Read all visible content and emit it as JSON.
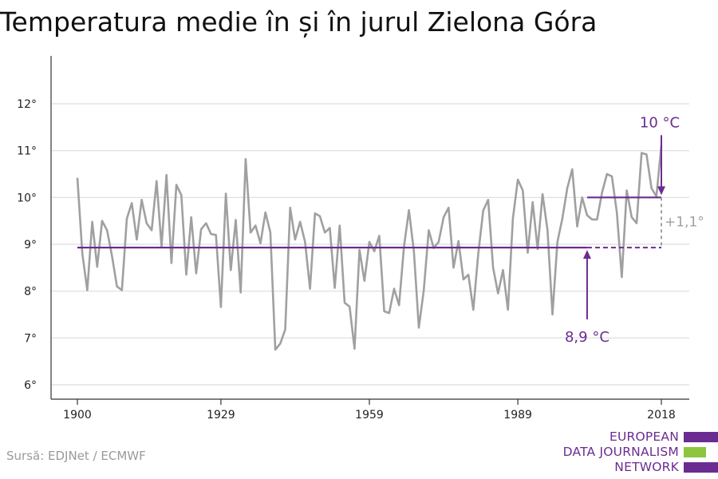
{
  "title": "Temperatura medie în și în jurul Zielona Góra",
  "source": "Sursă: EDJNet / ECMWF",
  "logo": {
    "lines": [
      "EUROPEAN",
      "DATA JOURNALISM",
      "NETWORK"
    ],
    "colors": [
      "#6b2c91",
      "#8cc63f",
      "#6b2c91"
    ]
  },
  "colors": {
    "series": "#a0a0a0",
    "reference": "#6b2c91",
    "grid": "#dddddd",
    "axis": "#333333",
    "diff": "#a0a0a0"
  },
  "chart_data": {
    "type": "line",
    "x_ticks": [
      1900,
      1929,
      1959,
      1989,
      2018
    ],
    "y_ticks": [
      "6°",
      "7°",
      "8°",
      "9°",
      "10°",
      "11°",
      "12°"
    ],
    "ylim": [
      6,
      12
    ],
    "xlim": [
      1900,
      2018
    ],
    "grid": true,
    "series": [
      {
        "x": [
          1900,
          1901,
          1902,
          1903,
          1904,
          1905,
          1906,
          1907,
          1908,
          1909,
          1910,
          1911,
          1912,
          1913,
          1914,
          1915,
          1916,
          1917,
          1918,
          1919,
          1920,
          1921,
          1922,
          1923,
          1924,
          1925,
          1926,
          1927,
          1928,
          1929,
          1930,
          1931,
          1932,
          1933,
          1934,
          1935,
          1936,
          1937,
          1938,
          1939,
          1940,
          1941,
          1942,
          1943,
          1944,
          1945,
          1946,
          1947,
          1948,
          1949,
          1950,
          1951,
          1952,
          1953,
          1954,
          1955,
          1956,
          1957,
          1958,
          1959,
          1960,
          1961,
          1962,
          1963,
          1964,
          1965,
          1966,
          1967,
          1968,
          1969,
          1970,
          1971,
          1972,
          1973,
          1974,
          1975,
          1976,
          1977,
          1978,
          1979,
          1980,
          1981,
          1982,
          1983,
          1984,
          1985,
          1986,
          1987,
          1988,
          1989,
          1990,
          1991,
          1992,
          1993,
          1994,
          1995,
          1996,
          1997,
          1998,
          1999,
          2000,
          2001,
          2002,
          2003,
          2004,
          2005,
          2006,
          2007,
          2008,
          2009,
          2010,
          2011,
          2012,
          2013,
          2014,
          2015,
          2016,
          2017,
          2018
        ],
        "values": [
          10.42,
          8.8,
          8.02,
          9.48,
          8.52,
          9.5,
          9.3,
          8.75,
          8.1,
          8.02,
          9.55,
          9.88,
          9.1,
          9.95,
          9.45,
          9.3,
          10.35,
          8.95,
          10.48,
          8.6,
          10.27,
          10.05,
          8.35,
          9.58,
          8.38,
          9.32,
          9.45,
          9.22,
          9.2,
          7.66,
          10.08,
          8.45,
          9.52,
          7.97,
          10.82,
          9.25,
          9.4,
          9.02,
          9.68,
          9.25,
          6.75,
          6.88,
          7.18,
          9.78,
          9.1,
          9.48,
          9.05,
          8.05,
          9.66,
          9.6,
          9.25,
          9.35,
          8.07,
          9.4,
          7.75,
          7.67,
          6.77,
          8.88,
          8.22,
          9.05,
          8.85,
          9.18,
          7.57,
          7.53,
          8.05,
          7.7,
          8.95,
          9.73,
          8.85,
          7.22,
          8.02,
          9.3,
          8.92,
          9.05,
          9.58,
          9.78,
          8.5,
          9.07,
          8.25,
          8.35,
          7.6,
          8.8,
          9.72,
          9.95,
          8.5,
          7.95,
          8.45,
          7.6,
          9.55,
          10.38,
          10.15,
          8.82,
          9.9,
          8.9,
          10.07,
          9.3,
          7.5,
          9.05,
          9.55,
          10.2,
          10.6,
          9.38,
          10.0,
          9.62,
          9.53,
          9.53,
          10.1,
          10.5,
          10.45,
          9.68,
          8.3,
          10.15,
          9.58,
          9.45,
          10.95,
          10.92,
          10.2,
          10.02,
          11.12
        ]
      }
    ],
    "reference_lines": [
      {
        "value": 8.93,
        "from": 1900,
        "to": 2018,
        "solid_to": 2003,
        "label": "8,9 °C"
      },
      {
        "value": 10.0,
        "from": 2003,
        "to": 2018,
        "label": "10 °C"
      }
    ],
    "difference_label": "+1,1°"
  }
}
